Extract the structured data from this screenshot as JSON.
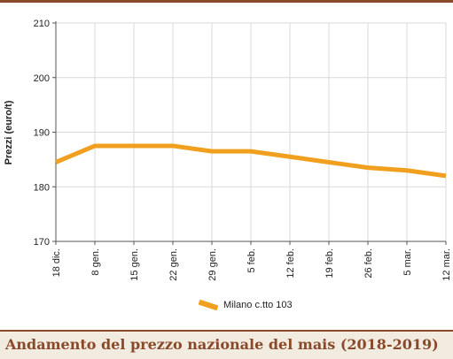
{
  "chart_data": {
    "type": "line",
    "title": "Andamento del prezzo nazionale del mais (2018-2019)",
    "ylabel": "Prezzi (euro/t)",
    "xlabel": "",
    "categories": [
      "18 dic.",
      "8 gen.",
      "15 gen.",
      "22 gen.",
      "29 gen.",
      "5 feb.",
      "12 feb.",
      "19 feb.",
      "26 feb.",
      "5 mar.",
      "12 mar."
    ],
    "yticks": [
      170,
      180,
      190,
      200,
      210
    ],
    "ylim": [
      170,
      210
    ],
    "grid": true,
    "legend_position": "bottom",
    "series": [
      {
        "name": "Milano  c.tto 103",
        "values": [
          184.5,
          187.5,
          187.5,
          187.5,
          186.5,
          186.5,
          185.5,
          184.5,
          183.5,
          183.0,
          182.0
        ]
      }
    ],
    "colors": {
      "line": "#f0a01e",
      "grid": "#d9d9d9",
      "axis": "#555555",
      "accent": "#8a4a2a"
    }
  }
}
